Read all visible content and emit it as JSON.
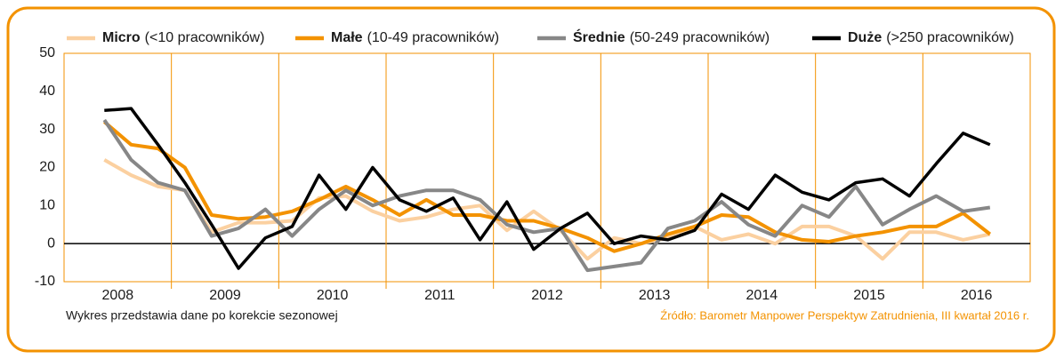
{
  "chart_data": {
    "type": "line",
    "legend_position": "top",
    "x": [
      2007.875,
      2008.125,
      2008.375,
      2008.625,
      2008.875,
      2009.125,
      2009.375,
      2009.625,
      2009.875,
      2010.125,
      2010.375,
      2010.625,
      2010.875,
      2011.125,
      2011.375,
      2011.625,
      2011.875,
      2012.125,
      2012.375,
      2012.625,
      2012.875,
      2013.125,
      2013.375,
      2013.625,
      2013.875,
      2014.125,
      2014.375,
      2014.625,
      2014.875,
      2015.125,
      2015.375,
      2015.625,
      2015.875,
      2016.125
    ],
    "xlim": [
      2007.5,
      2016.5
    ],
    "xticks": [
      2008,
      2009,
      2010,
      2011,
      2012,
      2013,
      2014,
      2015,
      2016
    ],
    "ylim": [
      -10,
      50
    ],
    "yticks": [
      -10,
      0,
      10,
      20,
      30,
      40,
      50
    ],
    "series": [
      {
        "name": "Micro",
        "name_detail": "(<10 pracowników)",
        "color": "#fbd0a0",
        "values": [
          22,
          18,
          15,
          14,
          3,
          5.5,
          5.5,
          6,
          12,
          12.5,
          8.5,
          6,
          7,
          9,
          10,
          3.5,
          8.5,
          3.5,
          -4,
          1.5,
          0,
          1.5,
          4.5,
          1,
          2.5,
          0,
          4.5,
          4.5,
          2,
          -4,
          3,
          3,
          1,
          2.5
        ]
      },
      {
        "name": "Małe",
        "name_detail": "(10-49 pracowników)",
        "color": "#f39200",
        "values": [
          32,
          26,
          25,
          20,
          7.5,
          6.5,
          7,
          8.5,
          11.5,
          15,
          11.5,
          7.5,
          11.5,
          7.5,
          7.5,
          6,
          6,
          4,
          1.5,
          -2,
          0,
          2.5,
          4.5,
          7.5,
          7,
          3,
          1,
          0.5,
          2,
          3,
          4.5,
          4.5,
          8,
          2.5
        ]
      },
      {
        "name": "Średnie",
        "name_detail": "(50-249 pracowników)",
        "color": "#878787",
        "values": [
          32.5,
          22,
          16,
          14,
          2,
          4,
          9,
          2,
          9,
          14,
          10,
          12.5,
          14,
          14,
          11.5,
          5,
          3,
          4,
          -7,
          -6,
          -5,
          4,
          6,
          11,
          5,
          2,
          10,
          7,
          15,
          5,
          9,
          12.5,
          8.5,
          9.5
        ]
      },
      {
        "name": "Duże",
        "name_detail": "(>250 pracowników)",
        "color": "#000000",
        "values": [
          35,
          35.5,
          26,
          16,
          5,
          -6.5,
          1.5,
          4.5,
          18,
          9,
          20,
          11.5,
          8.5,
          12,
          1,
          11,
          -1.5,
          4,
          8,
          0,
          2,
          1,
          3.5,
          13,
          9,
          18,
          13.5,
          11.5,
          16,
          17,
          12.5,
          21,
          29,
          26
        ]
      }
    ],
    "note": "Wykres przedstawia dane po korekcie sezonowej",
    "source": "Źródło: Barometr Manpower Perspektyw Zatrudnienia, III kwartał 2016 r."
  }
}
